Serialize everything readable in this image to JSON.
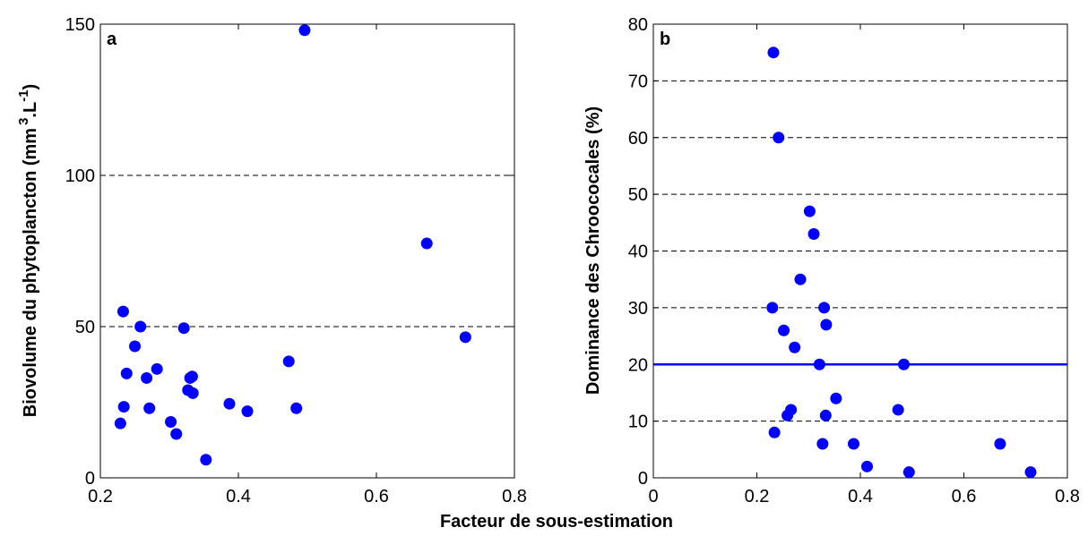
{
  "xlabel": "Facteur de sous-estimation",
  "chart_data": [
    {
      "type": "scatter",
      "panel_label": "a",
      "ylabel": "Biovolume du phytoplancton (mm",
      "ylabel_sup": "3",
      "ylabel_mid": ".L",
      "ylabel_sup2": "-1",
      "ylabel_end": ")",
      "xlim": [
        0.2,
        0.8
      ],
      "ylim": [
        0,
        150
      ],
      "xticks": [
        "0.2",
        "0.4",
        "0.6",
        "0.8"
      ],
      "xtick_values": [
        0.2,
        0.4,
        0.6,
        0.8
      ],
      "yticks": [
        "0",
        "50",
        "100",
        "150"
      ],
      "ytick_values": [
        0,
        50,
        100,
        150
      ],
      "grid_y": [
        50,
        100
      ],
      "marker_color": "#0000ff",
      "x": [
        0.229,
        0.233,
        0.234,
        0.238,
        0.25,
        0.258,
        0.267,
        0.271,
        0.282,
        0.302,
        0.31,
        0.321,
        0.327,
        0.33,
        0.333,
        0.334,
        0.353,
        0.387,
        0.413,
        0.473,
        0.484,
        0.496,
        0.673,
        0.729
      ],
      "y": [
        18,
        55,
        23.5,
        34.5,
        43.5,
        50,
        33,
        23,
        36,
        18.5,
        14.5,
        49.5,
        29,
        33,
        33.5,
        28,
        6,
        24.5,
        22,
        38.5,
        23,
        148,
        77.5,
        46.5
      ]
    },
    {
      "type": "scatter",
      "panel_label": "b",
      "ylabel": "Dominance des Chroococales (%)",
      "xlim": [
        0,
        0.8
      ],
      "ylim": [
        0,
        80
      ],
      "xticks": [
        "0",
        "0.2",
        "0.4",
        "0.6",
        "0.8"
      ],
      "xtick_values": [
        0,
        0.2,
        0.4,
        0.6,
        0.8
      ],
      "yticks": [
        "0",
        "10",
        "20",
        "30",
        "40",
        "50",
        "60",
        "70",
        "80"
      ],
      "ytick_values": [
        0,
        10,
        20,
        30,
        40,
        50,
        60,
        70,
        80
      ],
      "grid_y": [
        10,
        30,
        40,
        50,
        60,
        70
      ],
      "reference_line_y": 20,
      "reference_line_color": "#0000ff",
      "marker_color": "#0000ff",
      "x": [
        0.23,
        0.232,
        0.234,
        0.242,
        0.252,
        0.259,
        0.266,
        0.273,
        0.284,
        0.302,
        0.31,
        0.321,
        0.327,
        0.33,
        0.333,
        0.334,
        0.353,
        0.387,
        0.413,
        0.473,
        0.484,
        0.494,
        0.67,
        0.729
      ],
      "y": [
        30,
        75,
        8,
        60,
        26,
        11,
        12,
        23,
        35,
        47,
        43,
        20,
        6,
        30,
        11,
        27,
        14,
        6,
        2,
        12,
        20,
        1,
        6,
        1
      ]
    }
  ]
}
